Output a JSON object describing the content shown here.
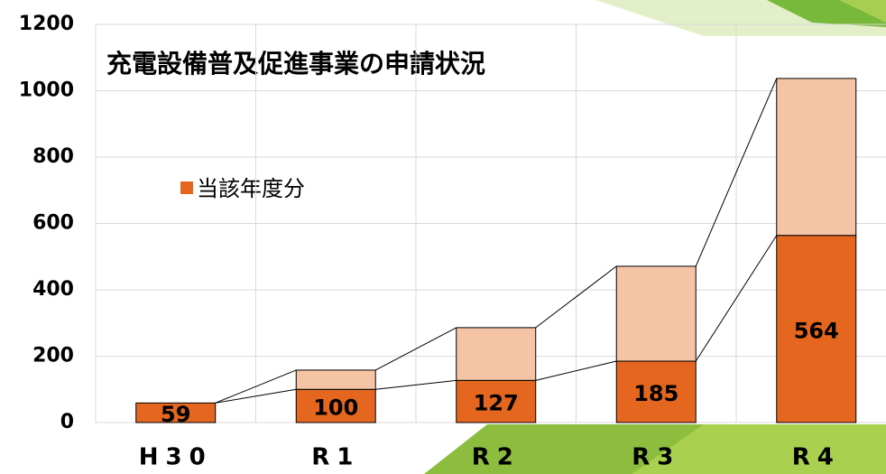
{
  "chart_data": {
    "type": "bar",
    "stacked": true,
    "title": "充電設備普及促進事業の申請状況",
    "categories": [
      "H30",
      "R1",
      "R2",
      "R3",
      "R4"
    ],
    "series": [
      {
        "name": "当該年度分",
        "color": "#e4661f",
        "values": [
          59,
          100,
          127,
          185,
          564
        ]
      },
      {
        "color": "#f5c4a5",
        "values": [
          0,
          58,
          159,
          286,
          473
        ]
      }
    ],
    "ylim": [
      0,
      1200
    ],
    "yticks": [
      0,
      200,
      400,
      600,
      800,
      1000,
      1200
    ],
    "grid": true
  }
}
